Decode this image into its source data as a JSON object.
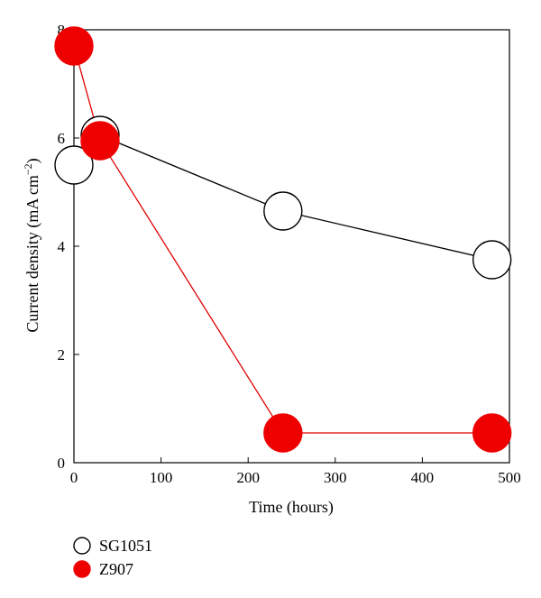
{
  "chart_data": {
    "type": "line",
    "x_label": "Time (hours)",
    "y_label_main": "Current density (mA cm",
    "y_label_sup": "−2",
    "y_label_close": ")",
    "xlim": [
      0,
      500
    ],
    "ylim": [
      0,
      8
    ],
    "x_ticks": [
      0,
      100,
      200,
      300,
      400,
      500
    ],
    "y_ticks": [
      0,
      2,
      4,
      6,
      8
    ],
    "grid": false,
    "legend_position": "bottom-left",
    "series": [
      {
        "name": "SG1051",
        "marker": "open-circle",
        "line_color": "#000000",
        "fill_color": "#ffffff",
        "points": [
          [
            0,
            5.5
          ],
          [
            30,
            6.05
          ],
          [
            240,
            4.65
          ],
          [
            480,
            3.75
          ]
        ]
      },
      {
        "name": "Z907",
        "marker": "filled-circle",
        "line_color": "#e00000",
        "fill_color": "#ee0000",
        "points": [
          [
            0,
            7.7
          ],
          [
            30,
            5.95
          ],
          [
            240,
            0.55
          ],
          [
            480,
            0.55
          ]
        ]
      }
    ]
  }
}
